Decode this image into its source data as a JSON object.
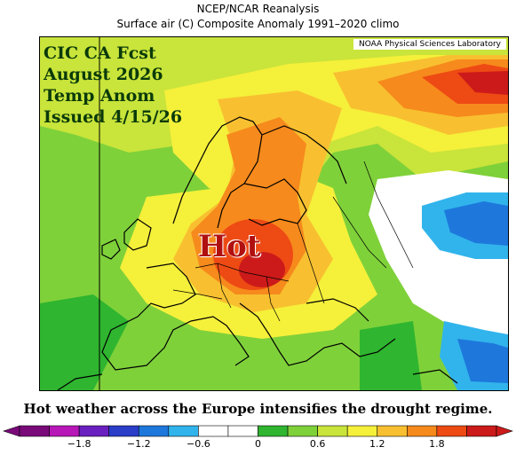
{
  "header": {
    "title": "NCEP/NCAR Reanalysis",
    "subtitle": "Surface air (C) Composite Anomaly 1991–2020 climo"
  },
  "map": {
    "credit": "NOAA Physical Sciences Laboratory",
    "overlay_lines": [
      "CIC CA Fcst",
      "August 2026",
      "Temp Anom",
      "Issued 4/15/26"
    ],
    "hot_label": "Hot",
    "variable": "Surface air temperature anomaly",
    "units": "C"
  },
  "caption": "Hot weather across the Europe intensifies the drought regime.",
  "colorbar": {
    "tick_labels": [
      "−1.8",
      "−1.2",
      "−0.6",
      "0",
      "0.6",
      "1.2",
      "1.8"
    ],
    "bins": [
      {
        "color": "#7a0a7a"
      },
      {
        "color": "#b817b8"
      },
      {
        "color": "#6a1fc0"
      },
      {
        "color": "#2a3ec8"
      },
      {
        "color": "#1e78dc"
      },
      {
        "color": "#31b4ec"
      },
      {
        "color": "#ffffff"
      },
      {
        "color": "#ffffff"
      },
      {
        "color": "#2fb52f"
      },
      {
        "color": "#7fd13a"
      },
      {
        "color": "#c9e43a"
      },
      {
        "color": "#f5f03a"
      },
      {
        "color": "#f8c030"
      },
      {
        "color": "#f68a1c"
      },
      {
        "color": "#ee4a14"
      },
      {
        "color": "#cc1a1a"
      }
    ]
  }
}
